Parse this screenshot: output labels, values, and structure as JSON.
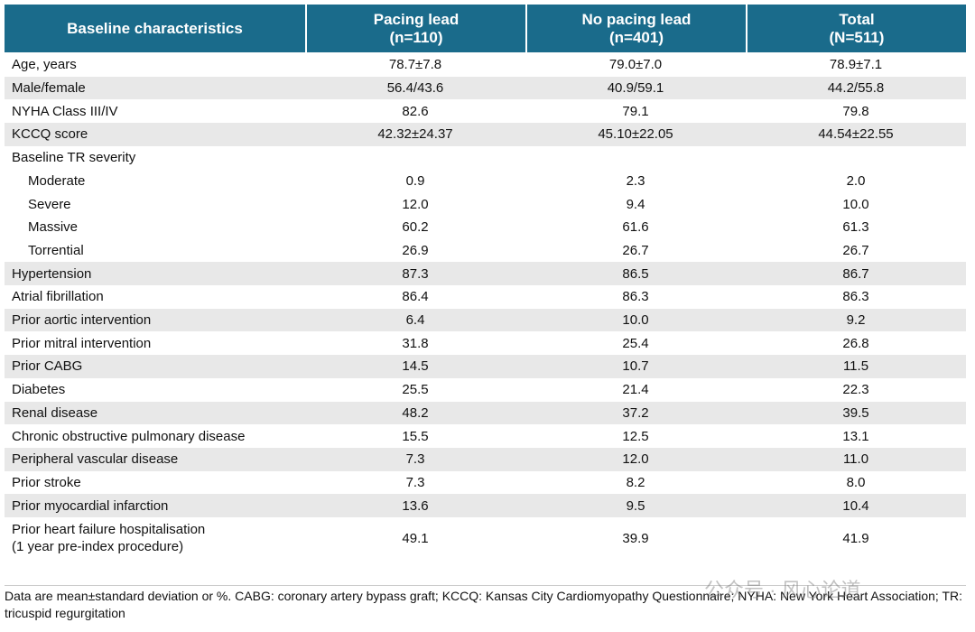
{
  "table": {
    "header": [
      "Baseline characteristics",
      "Pacing lead\n(n=110)",
      "No pacing lead\n(n=401)",
      "Total\n(N=511)"
    ],
    "rows": [
      {
        "label": "Age, years",
        "values": [
          "78.7±7.8",
          "79.0±7.0",
          "78.9±7.1"
        ]
      },
      {
        "label": "Male/female",
        "values": [
          "56.4/43.6",
          "40.9/59.1",
          "44.2/55.8"
        ]
      },
      {
        "label": "NYHA Class III/IV",
        "values": [
          "82.6",
          "79.1",
          "79.8"
        ]
      },
      {
        "label": "KCCQ score",
        "values": [
          "42.32±24.37",
          "45.10±22.05",
          "44.54±22.55"
        ]
      },
      {
        "label": "Baseline TR severity",
        "subrows": [
          {
            "label": "Moderate",
            "values": [
              "0.9",
              "2.3",
              "2.0"
            ]
          },
          {
            "label": "Severe",
            "values": [
              "12.0",
              "9.4",
              "10.0"
            ]
          },
          {
            "label": "Massive",
            "values": [
              "60.2",
              "61.6",
              "61.3"
            ]
          },
          {
            "label": "Torrential",
            "values": [
              "26.9",
              "26.7",
              "26.7"
            ]
          }
        ]
      },
      {
        "label": "Hypertension",
        "values": [
          "87.3",
          "86.5",
          "86.7"
        ]
      },
      {
        "label": "Atrial fibrillation",
        "values": [
          "86.4",
          "86.3",
          "86.3"
        ]
      },
      {
        "label": "Prior aortic intervention",
        "values": [
          "6.4",
          "10.0",
          "9.2"
        ]
      },
      {
        "label": "Prior mitral intervention",
        "values": [
          "31.8",
          "25.4",
          "26.8"
        ]
      },
      {
        "label": "Prior CABG",
        "values": [
          "14.5",
          "10.7",
          "11.5"
        ]
      },
      {
        "label": "Diabetes",
        "values": [
          "25.5",
          "21.4",
          "22.3"
        ]
      },
      {
        "label": "Renal disease",
        "values": [
          "48.2",
          "37.2",
          "39.5"
        ]
      },
      {
        "label": "Chronic obstructive pulmonary disease",
        "values": [
          "15.5",
          "12.5",
          "13.1"
        ]
      },
      {
        "label": "Peripheral vascular disease",
        "values": [
          "7.3",
          "12.0",
          "11.0"
        ]
      },
      {
        "label": "Prior stroke",
        "values": [
          "7.3",
          "8.2",
          "8.0"
        ]
      },
      {
        "label": "Prior myocardial infarction",
        "values": [
          "13.6",
          "9.5",
          "10.4"
        ]
      },
      {
        "label": "Prior heart failure hospitalisation\n(1 year pre-index procedure)",
        "values": [
          "49.1",
          "39.9",
          "41.9"
        ]
      }
    ],
    "footnote": "Data are mean±standard deviation or %. CABG: coronary artery bypass graft; KCCQ: Kansas City Cardiomyopathy Questionnaire; NYHA: New York Heart Association; TR: tricuspid regurgitation",
    "watermark": "公众号 · 风心论道"
  }
}
